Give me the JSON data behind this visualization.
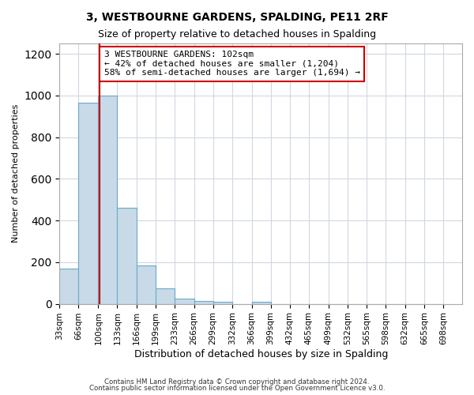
{
  "title": "3, WESTBOURNE GARDENS, SPALDING, PE11 2RF",
  "subtitle": "Size of property relative to detached houses in Spalding",
  "xlabel": "Distribution of detached houses by size in Spalding",
  "ylabel": "Number of detached properties",
  "bin_labels": [
    "33sqm",
    "66sqm",
    "100sqm",
    "133sqm",
    "166sqm",
    "199sqm",
    "233sqm",
    "266sqm",
    "299sqm",
    "332sqm",
    "366sqm",
    "399sqm",
    "432sqm",
    "465sqm",
    "499sqm",
    "532sqm",
    "565sqm",
    "598sqm",
    "632sqm",
    "665sqm",
    "698sqm"
  ],
  "bin_edges": [
    33,
    66,
    100,
    133,
    166,
    199,
    233,
    266,
    299,
    332,
    366,
    399,
    432,
    465,
    499,
    532,
    565,
    598,
    632,
    665,
    698
  ],
  "bar_heights": [
    170,
    965,
    1000,
    460,
    185,
    75,
    25,
    15,
    10,
    0,
    10,
    0,
    0,
    0,
    0,
    0,
    0,
    0,
    0,
    0
  ],
  "bar_color": "#c8d9e8",
  "bar_edgecolor": "#6aaac8",
  "property_line_x": 102,
  "property_line_color": "#cc0000",
  "annotation_text": "3 WESTBOURNE GARDENS: 102sqm\n← 42% of detached houses are smaller (1,204)\n58% of semi-detached houses are larger (1,694) →",
  "annotation_box_edgecolor": "#cc0000",
  "annotation_box_facecolor": "#ffffff",
  "ylim": [
    0,
    1250
  ],
  "yticks": [
    0,
    200,
    400,
    600,
    800,
    1000,
    1200
  ],
  "footer_line1": "Contains HM Land Registry data © Crown copyright and database right 2024.",
  "footer_line2": "Contains public sector information licensed under the Open Government Licence v3.0.",
  "background_color": "#ffffff",
  "grid_color": "#d0d8e0"
}
